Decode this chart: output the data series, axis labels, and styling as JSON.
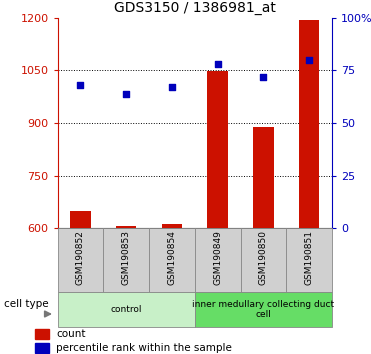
{
  "title": "GDS3150 / 1386981_at",
  "samples": [
    "GSM190852",
    "GSM190853",
    "GSM190854",
    "GSM190849",
    "GSM190850",
    "GSM190851"
  ],
  "counts": [
    650,
    608,
    612,
    1048,
    888,
    1193
  ],
  "percentiles": [
    68,
    64,
    67,
    78,
    72,
    80
  ],
  "bar_color": "#cc1100",
  "dot_color": "#0000bb",
  "ylim_left": [
    600,
    1200
  ],
  "ylim_right": [
    0,
    100
  ],
  "yticks_left": [
    600,
    750,
    900,
    1050,
    1200
  ],
  "yticks_right": [
    0,
    25,
    50,
    75,
    100
  ],
  "ytick_labels_right": [
    "0",
    "25",
    "50",
    "75",
    "100%"
  ],
  "left_axis_color": "#cc1100",
  "right_axis_color": "#0000bb",
  "groups": [
    {
      "label": "control",
      "start": 0,
      "end": 3,
      "color": "#c8f0c8"
    },
    {
      "label": "inner medullary collecting duct\ncell",
      "start": 3,
      "end": 6,
      "color": "#66dd66"
    }
  ],
  "cell_type_label": "cell type",
  "legend_count_label": "count",
  "legend_percentile_label": "percentile rank within the sample",
  "bar_baseline": 600,
  "sample_bg_color": "#d0d0d0",
  "sample_border_color": "#888888"
}
